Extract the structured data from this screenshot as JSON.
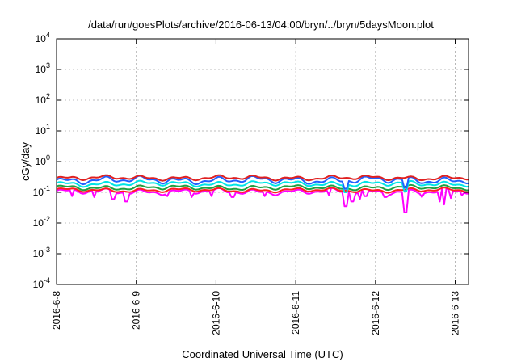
{
  "chart_data": {
    "type": "line",
    "title": "/data/run/goesPlots/archive/2016-06-13/04:00/bryn/../bryn/5daysMoon.plot",
    "xlabel": "Coordinated Universal Time (UTC)",
    "ylabel": "cGy/day",
    "y_scale": "log",
    "ylim": [
      0.0001,
      10000
    ],
    "xlim": [
      "2016-06-08T00:00",
      "2016-06-13T04:00"
    ],
    "x_ticks": [
      "2016-6-8",
      "2016-6-9",
      "2016-6-10",
      "2016-6-11",
      "2016-6-12",
      "2016-6-13"
    ],
    "y_ticks": [
      {
        "base": "10",
        "exp": "-4",
        "value": 0.0001
      },
      {
        "base": "10",
        "exp": "-3",
        "value": 0.001
      },
      {
        "base": "10",
        "exp": "-2",
        "value": 0.01
      },
      {
        "base": "10",
        "exp": "-1",
        "value": 0.1
      },
      {
        "base": "10",
        "exp": "0",
        "value": 1
      },
      {
        "base": "10",
        "exp": "1",
        "value": 10
      },
      {
        "base": "10",
        "exp": "2",
        "value": 100
      },
      {
        "base": "10",
        "exp": "3",
        "value": 1000
      },
      {
        "base": "10",
        "exp": "4",
        "value": 10000
      }
    ],
    "grid": true,
    "series": [
      {
        "color": "#ff00ff",
        "base": 0.105,
        "amp": 0.12,
        "dips": [
          {
            "at": "2016-06-08T04:30",
            "value": 0.075
          },
          {
            "at": "2016-06-08T11:30",
            "value": 0.07
          },
          {
            "at": "2016-06-08T17:00",
            "value": 0.06
          },
          {
            "at": "2016-06-08T21:00",
            "value": 0.05
          },
          {
            "at": "2016-06-09T09:30",
            "value": 0.075
          },
          {
            "at": "2016-06-09T16:30",
            "value": 0.07
          },
          {
            "at": "2016-06-09T22:30",
            "value": 0.075
          },
          {
            "at": "2016-06-10T05:00",
            "value": 0.07
          },
          {
            "at": "2016-06-10T14:30",
            "value": 0.075
          },
          {
            "at": "2016-06-11T10:00",
            "value": 0.08
          },
          {
            "at": "2016-06-11T14:30",
            "value": 0.075
          },
          {
            "at": "2016-06-11T15:00",
            "value": 0.035
          },
          {
            "at": "2016-06-11T17:00",
            "value": 0.05
          },
          {
            "at": "2016-06-11T19:30",
            "value": 0.06
          },
          {
            "at": "2016-06-11T21:00",
            "value": 0.075
          },
          {
            "at": "2016-06-12T03:00",
            "value": 0.07
          },
          {
            "at": "2016-06-12T09:00",
            "value": 0.022
          },
          {
            "at": "2016-06-12T14:00",
            "value": 0.07
          },
          {
            "at": "2016-06-12T19:30",
            "value": 0.05
          },
          {
            "at": "2016-06-12T20:30",
            "value": 0.04
          },
          {
            "at": "2016-06-12T22:30",
            "value": 0.065
          },
          {
            "at": "2016-06-13T02:00",
            "value": 0.08
          }
        ]
      },
      {
        "color": "#ff2020",
        "base": 0.117,
        "amp": 0.09,
        "dips": []
      },
      {
        "color": "#20a040",
        "base": 0.142,
        "amp": 0.1,
        "dips": []
      },
      {
        "color": "#00e5e5",
        "base": 0.19,
        "amp": 0.11,
        "dips": [
          {
            "at": "2016-06-11T15:00",
            "value": 0.1
          },
          {
            "at": "2016-06-12T09:00",
            "value": 0.11
          }
        ]
      },
      {
        "color": "#2060ff",
        "base": 0.25,
        "amp": 0.15,
        "dips": [
          {
            "at": "2016-06-11T15:00",
            "value": 0.13
          },
          {
            "at": "2016-06-12T09:00",
            "value": 0.14
          }
        ]
      },
      {
        "color": "#e02020",
        "base": 0.295,
        "amp": 0.1,
        "dips": []
      }
    ]
  }
}
